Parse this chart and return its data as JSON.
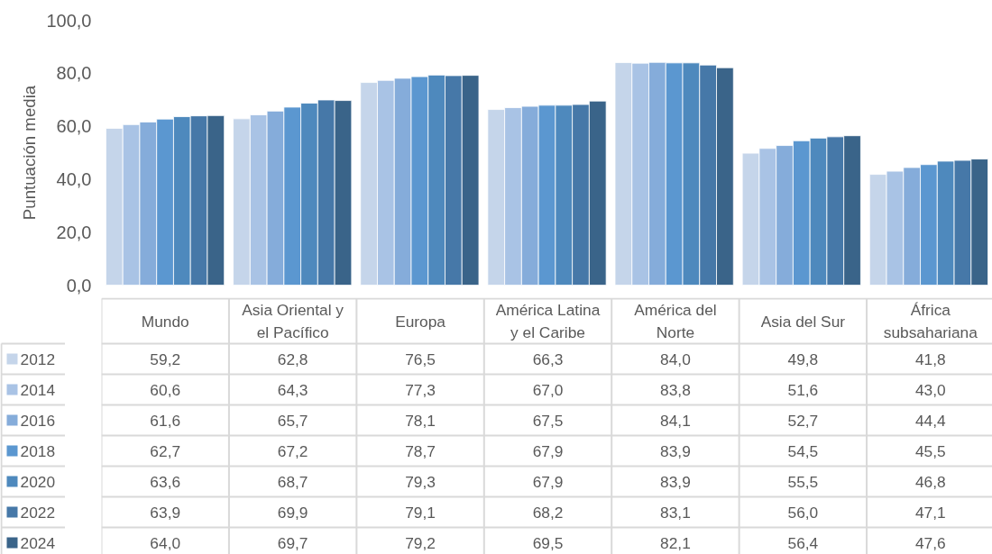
{
  "chart_data": {
    "type": "bar",
    "ylabel": "Puntuación media",
    "categories": [
      "Mundo",
      "Asia Oriental y\nel Pacífico",
      "Europa",
      "América Latina\ny el Caribe",
      "América del\nNorte",
      "Asia del Sur",
      "África\nsubsahariana"
    ],
    "series": [
      {
        "name": "2012",
        "color": "#c5d5ea",
        "values": [
          59.2,
          62.8,
          76.5,
          66.3,
          84.0,
          49.8,
          41.8
        ],
        "value_labels": [
          "59,2",
          "62,8",
          "76,5",
          "66,3",
          "84,0",
          "49,8",
          "41,8"
        ]
      },
      {
        "name": "2014",
        "color": "#a9c3e5",
        "values": [
          60.6,
          64.3,
          77.3,
          67.0,
          83.8,
          51.6,
          43.0
        ],
        "value_labels": [
          "60,6",
          "64,3",
          "77,3",
          "67,0",
          "83,8",
          "51,6",
          "43,0"
        ]
      },
      {
        "name": "2016",
        "color": "#85acda",
        "values": [
          61.6,
          65.7,
          78.1,
          67.5,
          84.1,
          52.7,
          44.4
        ],
        "value_labels": [
          "61,6",
          "65,7",
          "78,1",
          "67,5",
          "84,1",
          "52,7",
          "44,4"
        ]
      },
      {
        "name": "2018",
        "color": "#5b97d0",
        "values": [
          62.7,
          67.2,
          78.7,
          67.9,
          83.9,
          54.5,
          45.5
        ],
        "value_labels": [
          "62,7",
          "67,2",
          "78,7",
          "67,9",
          "83,9",
          "54,5",
          "45,5"
        ]
      },
      {
        "name": "2020",
        "color": "#4e89bd",
        "values": [
          63.6,
          68.7,
          79.3,
          67.9,
          83.9,
          55.5,
          46.8
        ],
        "value_labels": [
          "63,6",
          "68,7",
          "79,3",
          "67,9",
          "83,9",
          "55,5",
          "46,8"
        ]
      },
      {
        "name": "2022",
        "color": "#4678a8",
        "values": [
          63.9,
          69.9,
          79.1,
          68.2,
          83.1,
          56.0,
          47.1
        ],
        "value_labels": [
          "63,9",
          "69,9",
          "79,1",
          "68,2",
          "83,1",
          "56,0",
          "47,1"
        ]
      },
      {
        "name": "2024",
        "color": "#3a6489",
        "values": [
          64.0,
          69.7,
          79.2,
          69.5,
          82.1,
          56.4,
          47.6
        ],
        "value_labels": [
          "64,0",
          "69,7",
          "79,2",
          "69,5",
          "82,1",
          "56,4",
          "47,6"
        ]
      }
    ],
    "ylim": [
      0,
      100
    ],
    "yticks": [
      {
        "value": 0,
        "label": "0,0"
      },
      {
        "value": 20,
        "label": "20,0"
      },
      {
        "value": 40,
        "label": "40,0"
      },
      {
        "value": 60,
        "label": "60,0"
      },
      {
        "value": 80,
        "label": "80,0"
      },
      {
        "value": 100,
        "label": "100,0"
      }
    ],
    "grid": false,
    "legend": "bottom left"
  }
}
